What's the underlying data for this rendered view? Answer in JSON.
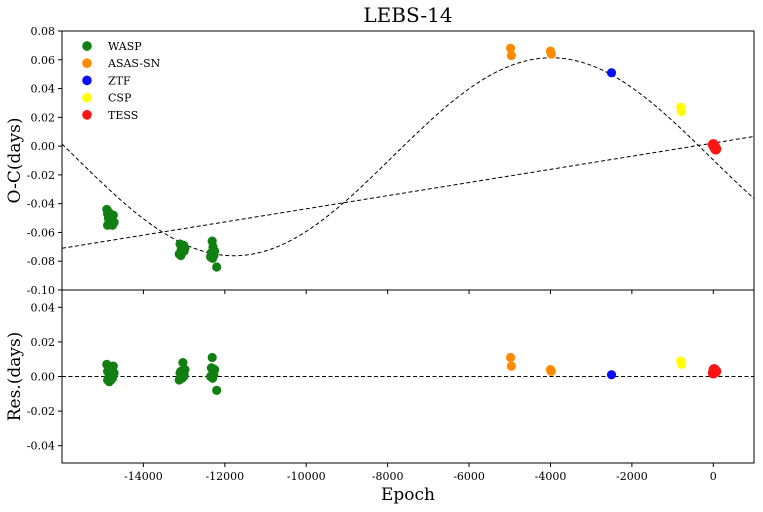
{
  "chart_data": {
    "type": "scatter",
    "title": "LEBS-14",
    "xlabel": "Epoch",
    "x_ticks": [
      -14000,
      -12000,
      -10000,
      -8000,
      -6000,
      -4000,
      -2000,
      0
    ],
    "xlim": [
      -16000,
      1000
    ],
    "legend_position": "top-left",
    "panels": [
      {
        "name": "oc",
        "ylabel": "O-C(days)",
        "ylim": [
          -0.1,
          0.08
        ],
        "y_ticks": [
          -0.1,
          -0.08,
          -0.06,
          -0.04,
          -0.02,
          0.0,
          0.02,
          0.04,
          0.06,
          0.08
        ],
        "y_tick_labels": [
          "-0.10",
          "-0.08",
          "-0.06",
          "-0.04",
          "-0.02",
          "0.00",
          "0.02",
          "0.04",
          "0.06",
          "0.08"
        ],
        "fits": [
          {
            "kind": "linear",
            "style": "dashed",
            "x": [
              -16000,
              1000
            ],
            "y": [
              -0.071,
              0.0067
            ]
          },
          {
            "kind": "sinusoid",
            "style": "dashed",
            "offset": -0.0074,
            "amplitude": 0.0688,
            "period": 15600,
            "peak_epoch": -3980
          }
        ],
        "series": [
          {
            "name": "WASP",
            "color": "#117f11",
            "points": [
              [
                -14900,
                -0.044
              ],
              [
                -14880,
                -0.047
              ],
              [
                -14860,
                -0.05
              ],
              [
                -14840,
                -0.052
              ],
              [
                -14820,
                -0.049
              ],
              [
                -14800,
                -0.054
              ],
              [
                -14780,
                -0.051
              ],
              [
                -14760,
                -0.055
              ],
              [
                -14740,
                -0.048
              ],
              [
                -14720,
                -0.053
              ],
              [
                -14880,
                -0.055
              ],
              [
                -14850,
                -0.046
              ],
              [
                -13100,
                -0.068
              ],
              [
                -13070,
                -0.072
              ],
              [
                -13050,
                -0.074
              ],
              [
                -13030,
                -0.07
              ],
              [
                -13000,
                -0.073
              ],
              [
                -12980,
                -0.071
              ],
              [
                -13120,
                -0.075
              ],
              [
                -13080,
                -0.076
              ],
              [
                -13010,
                -0.069
              ],
              [
                -12350,
                -0.077
              ],
              [
                -12330,
                -0.074
              ],
              [
                -12310,
                -0.066
              ],
              [
                -12290,
                -0.07
              ],
              [
                -12270,
                -0.076
              ],
              [
                -12300,
                -0.078
              ],
              [
                -12250,
                -0.073
              ],
              [
                -12200,
                -0.084
              ]
            ]
          },
          {
            "name": "ASAS-SN",
            "color": "#ff8a00",
            "points": [
              [
                -4980,
                0.068
              ],
              [
                -4960,
                0.063
              ],
              [
                -4000,
                0.066
              ],
              [
                -3980,
                0.064
              ]
            ]
          },
          {
            "name": "ZTF",
            "color": "#0a10f5",
            "points": [
              [
                -2500,
                0.051
              ]
            ]
          },
          {
            "name": "CSP",
            "color": "#ffff00",
            "points": [
              [
                -800,
                0.027
              ],
              [
                -780,
                0.024
              ]
            ]
          },
          {
            "name": "TESS",
            "color": "#ff1414",
            "points": [
              [
                20,
                0.0
              ],
              [
                40,
                -0.001
              ],
              [
                0,
                0.001
              ],
              [
                60,
                -0.002
              ]
            ]
          }
        ]
      },
      {
        "name": "residuals",
        "ylabel": "Res.(days)",
        "ylim": [
          -0.05,
          0.05
        ],
        "y_ticks": [
          -0.04,
          -0.02,
          0.0,
          0.02,
          0.04
        ],
        "y_tick_labels": [
          "-0.04",
          "-0.02",
          "0.00",
          "0.02",
          "0.04"
        ],
        "reference_line": 0,
        "series": [
          {
            "name": "WASP",
            "color": "#117f11",
            "points": [
              [
                -14900,
                0.007
              ],
              [
                -14880,
                0.003
              ],
              [
                -14860,
                -0.001
              ],
              [
                -14840,
                -0.003
              ],
              [
                -14820,
                0.001
              ],
              [
                -14800,
                -0.002
              ],
              [
                -14780,
                0.002
              ],
              [
                -14760,
                -0.001
              ],
              [
                -14740,
                0.006
              ],
              [
                -14720,
                0.002
              ],
              [
                -14880,
                -0.002
              ],
              [
                -14850,
                0.004
              ],
              [
                -13100,
                0.002
              ],
              [
                -13070,
                0.003
              ],
              [
                -13050,
                -0.001
              ],
              [
                -13030,
                0.008
              ],
              [
                -13000,
                0.001
              ],
              [
                -12980,
                0.004
              ],
              [
                -13120,
                -0.002
              ],
              [
                -13080,
                0.003
              ],
              [
                -13010,
                0.0
              ],
              [
                -12350,
                0.0
              ],
              [
                -12330,
                0.005
              ],
              [
                -12310,
                0.011
              ],
              [
                -12290,
                0.003
              ],
              [
                -12270,
                0.001
              ],
              [
                -12300,
                -0.001
              ],
              [
                -12250,
                0.004
              ],
              [
                -12200,
                -0.008
              ]
            ]
          },
          {
            "name": "ASAS-SN",
            "color": "#ff8a00",
            "points": [
              [
                -4980,
                0.011
              ],
              [
                -4960,
                0.006
              ],
              [
                -4000,
                0.004
              ],
              [
                -3980,
                0.003
              ]
            ]
          },
          {
            "name": "ZTF",
            "color": "#0a10f5",
            "points": [
              [
                -2500,
                0.001
              ]
            ]
          },
          {
            "name": "CSP",
            "color": "#ffff00",
            "points": [
              [
                -800,
                0.009
              ],
              [
                -780,
                0.007
              ]
            ]
          },
          {
            "name": "TESS",
            "color": "#ff1414",
            "points": [
              [
                20,
                0.004
              ],
              [
                40,
                0.003
              ],
              [
                0,
                0.002
              ],
              [
                60,
                0.003
              ]
            ]
          }
        ]
      }
    ]
  }
}
